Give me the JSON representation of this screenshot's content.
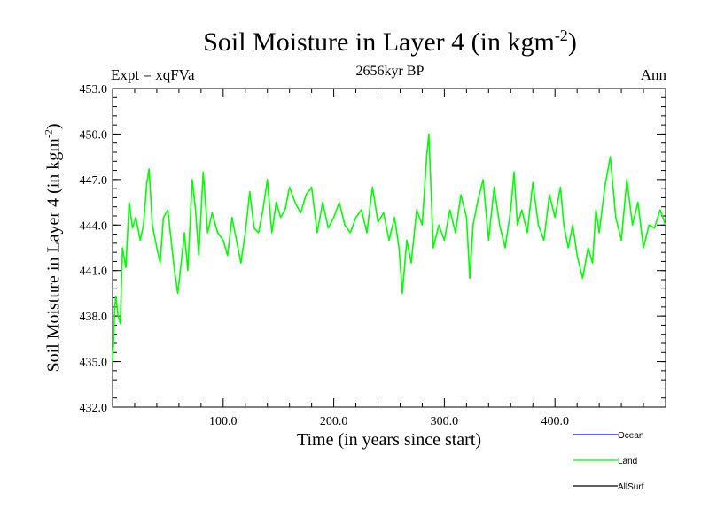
{
  "chart_data": {
    "type": "line",
    "title": "Soil Moisture in Layer 4 (in kgm",
    "title_sup": "-2",
    "title_end": ")",
    "subtitle": "2656kyr BP",
    "left_label": "Expt = xqFVa",
    "right_label": "Ann",
    "xlabel": "Time (in years since start)",
    "ylabel": "Soil Moisture in Layer 4 (in kgm",
    "ylabel_sup": "-2",
    "ylabel_end": ")",
    "xlim": [
      0,
      500
    ],
    "ylim": [
      432.0,
      453.0
    ],
    "x_ticks": [
      100,
      200,
      300,
      400
    ],
    "x_tick_labels": [
      "100.0",
      "200.0",
      "300.0",
      "400.0"
    ],
    "y_ticks": [
      432,
      435,
      438,
      441,
      444,
      447,
      450,
      453
    ],
    "y_tick_labels": [
      "432.0",
      "435.0",
      "438.0",
      "441.0",
      "444.0",
      "447.0",
      "450.0",
      "453.0"
    ],
    "legend": [
      {
        "name": "Ocean",
        "color": "#0000ff"
      },
      {
        "name": "Land",
        "color": "#00ff00"
      },
      {
        "name": "AllSurf",
        "color": "#000000"
      }
    ],
    "series": [
      {
        "name": "Land",
        "color": "#00ff00",
        "x": [
          0,
          1,
          2,
          3,
          5,
          7,
          9,
          12,
          15,
          18,
          21,
          25,
          28,
          31,
          33,
          36,
          40,
          43,
          46,
          50,
          53,
          56,
          59,
          62,
          65,
          68,
          72,
          75,
          78,
          82,
          86,
          90,
          95,
          100,
          104,
          108,
          112,
          116,
          120,
          124,
          128,
          132,
          136,
          140,
          144,
          148,
          152,
          156,
          160,
          165,
          170,
          175,
          180,
          185,
          190,
          195,
          200,
          205,
          210,
          215,
          220,
          225,
          230,
          235,
          240,
          245,
          250,
          255,
          259,
          262,
          266,
          270,
          275,
          280,
          284,
          286,
          290,
          295,
          300,
          305,
          310,
          315,
          320,
          323,
          326,
          330,
          335,
          340,
          345,
          350,
          355,
          360,
          363,
          366,
          370,
          375,
          380,
          385,
          390,
          395,
          400,
          405,
          408,
          412,
          416,
          420,
          425,
          430,
          434,
          437,
          440,
          445,
          450,
          455,
          460,
          465,
          470,
          475,
          480,
          485,
          490,
          495,
          500
        ],
        "values": [
          435.0,
          436.5,
          438.5,
          439.3,
          438.0,
          437.5,
          442.5,
          441.2,
          445.5,
          443.8,
          444.5,
          443.0,
          444.0,
          446.8,
          447.7,
          444.0,
          442.5,
          441.5,
          444.5,
          445.0,
          443.0,
          441.0,
          439.5,
          441.5,
          443.5,
          441.0,
          447.0,
          445.0,
          442.0,
          447.5,
          443.5,
          444.8,
          443.5,
          443.0,
          442.0,
          444.5,
          443.0,
          441.5,
          443.5,
          446.2,
          443.8,
          443.5,
          445.0,
          447.0,
          443.5,
          445.5,
          444.5,
          445.0,
          446.5,
          445.5,
          444.8,
          446.0,
          446.5,
          443.5,
          445.5,
          443.8,
          444.5,
          445.5,
          444.0,
          443.5,
          444.5,
          445.0,
          443.5,
          446.5,
          444.2,
          444.8,
          443.0,
          444.5,
          442.5,
          439.5,
          443.0,
          441.5,
          445.0,
          444.0,
          448.5,
          450.0,
          442.5,
          444.0,
          443.0,
          445.0,
          443.5,
          446.0,
          444.5,
          440.5,
          444.0,
          445.5,
          447.0,
          443.0,
          446.5,
          444.0,
          442.5,
          445.0,
          447.5,
          444.0,
          445.0,
          443.5,
          446.8,
          444.0,
          443.0,
          446.0,
          444.5,
          446.5,
          444.0,
          442.5,
          444.0,
          442.0,
          440.5,
          442.5,
          441.5,
          445.0,
          443.5,
          446.5,
          448.5,
          444.5,
          443.0,
          447.0,
          444.0,
          445.5,
          442.5,
          444.0,
          443.8,
          445.0,
          444.0
        ]
      }
    ]
  }
}
